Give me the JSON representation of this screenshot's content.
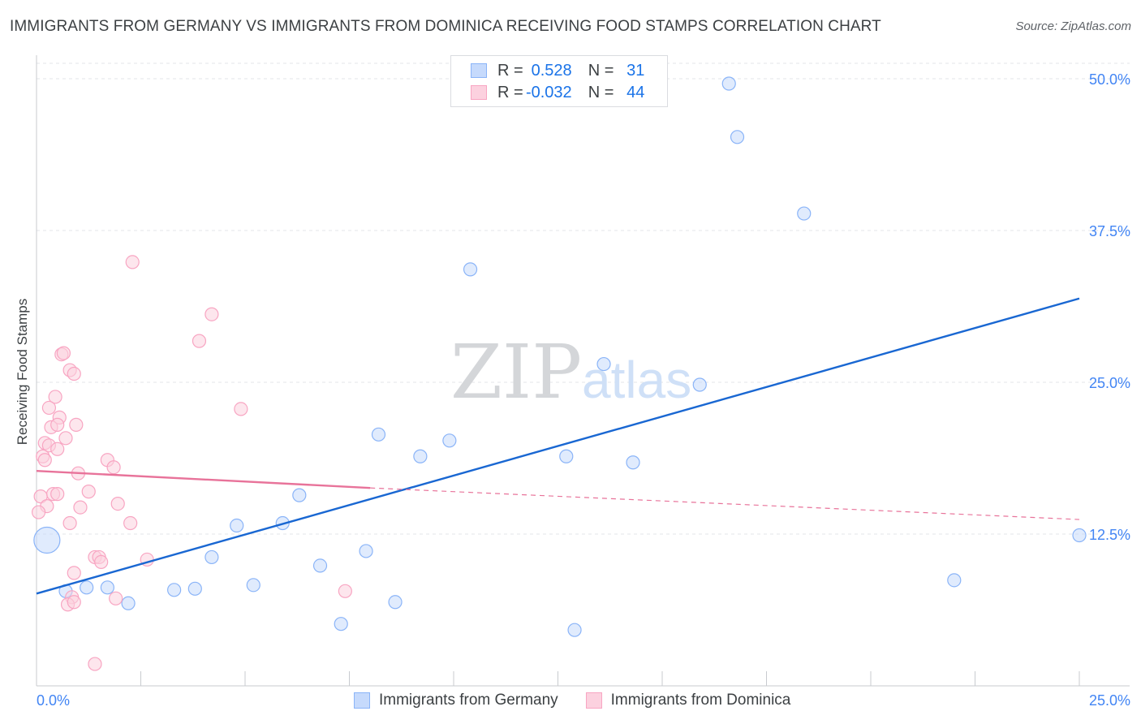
{
  "header": {
    "title": "IMMIGRANTS FROM GERMANY VS IMMIGRANTS FROM DOMINICA RECEIVING FOOD STAMPS CORRELATION CHART",
    "source": "Source: ZipAtlas.com"
  },
  "legend": {
    "rows": [
      {
        "r_label": "R = ",
        "r_value": "0.528",
        "n_label": "N = ",
        "n_value": "31"
      },
      {
        "r_label": "R = ",
        "r_value": "-0.032",
        "n_label": "N = ",
        "n_value": "44"
      }
    ]
  },
  "chart_data": {
    "type": "scatter",
    "title": "IMMIGRANTS FROM GERMANY VS IMMIGRANTS FROM DOMINICA RECEIVING FOOD STAMPS CORRELATION CHART",
    "xlabel": "",
    "ylabel": "Receiving Food Stamps",
    "xlim": [
      0,
      25
    ],
    "ylim": [
      0,
      50
    ],
    "x_tick_labels": [
      "0.0%",
      "25.0%"
    ],
    "y_ticks": [
      12.5,
      25.0,
      37.5,
      50.0
    ],
    "y_tick_labels": [
      "12.5%",
      "25.0%",
      "37.5%",
      "50.0%"
    ],
    "grid": true,
    "legend_position": "top-center",
    "bottom_legend_position": "bottom-center",
    "watermark": {
      "part1": "ZIP",
      "part2": "atlas"
    },
    "series": [
      {
        "name": "Immigrants from Germany",
        "color": "#8ab4f8",
        "line_color": "#1967d2",
        "points": [
          [
            0.25,
            12.0,
            2.0
          ],
          [
            0.7,
            7.8,
            1
          ],
          [
            1.2,
            8.1,
            1
          ],
          [
            1.7,
            8.1,
            1
          ],
          [
            2.2,
            6.8,
            1
          ],
          [
            3.3,
            7.9,
            1
          ],
          [
            3.8,
            8.0,
            1
          ],
          [
            4.2,
            10.6,
            1
          ],
          [
            4.8,
            13.2,
            1
          ],
          [
            5.2,
            8.3,
            1
          ],
          [
            5.9,
            13.4,
            1
          ],
          [
            6.3,
            15.7,
            1
          ],
          [
            6.8,
            9.9,
            1
          ],
          [
            7.3,
            5.1,
            1
          ],
          [
            7.9,
            11.1,
            1
          ],
          [
            8.2,
            20.7,
            1
          ],
          [
            8.6,
            6.9,
            1
          ],
          [
            9.2,
            18.9,
            1
          ],
          [
            9.9,
            20.2,
            1
          ],
          [
            10.4,
            34.3,
            1
          ],
          [
            12.7,
            18.9,
            1
          ],
          [
            12.9,
            4.6,
            1
          ],
          [
            13.6,
            26.5,
            1
          ],
          [
            14.3,
            18.4,
            1
          ],
          [
            15.9,
            24.8,
            1
          ],
          [
            16.6,
            49.6,
            1
          ],
          [
            16.8,
            45.2,
            1
          ],
          [
            18.4,
            38.9,
            1
          ],
          [
            22.0,
            8.7,
            1
          ],
          [
            25.0,
            12.4,
            1
          ]
        ],
        "trend": {
          "x": [
            0,
            25
          ],
          "y": [
            7.6,
            31.9
          ]
        }
      },
      {
        "name": "Immigrants from Dominica",
        "color": "#f8a5c2",
        "line_color": "#e8739a",
        "points": [
          [
            2.3,
            34.9,
            1
          ],
          [
            0.6,
            27.3,
            1
          ],
          [
            0.65,
            27.4,
            1
          ],
          [
            0.8,
            26.0,
            1
          ],
          [
            0.9,
            25.7,
            1
          ],
          [
            0.45,
            23.8,
            1
          ],
          [
            0.3,
            22.9,
            1
          ],
          [
            0.55,
            22.1,
            1
          ],
          [
            0.35,
            21.3,
            1
          ],
          [
            0.5,
            21.5,
            1
          ],
          [
            0.95,
            21.5,
            1
          ],
          [
            0.7,
            20.4,
            1
          ],
          [
            0.2,
            20.0,
            1
          ],
          [
            0.3,
            19.8,
            1
          ],
          [
            0.5,
            19.5,
            1
          ],
          [
            0.15,
            18.9,
            1
          ],
          [
            0.2,
            18.6,
            1
          ],
          [
            1.7,
            18.6,
            1
          ],
          [
            1.85,
            18.0,
            1
          ],
          [
            1.0,
            17.5,
            1
          ],
          [
            0.4,
            15.8,
            1
          ],
          [
            0.5,
            15.8,
            1
          ],
          [
            0.1,
            15.6,
            1
          ],
          [
            1.25,
            16.0,
            1
          ],
          [
            0.25,
            14.8,
            1
          ],
          [
            1.05,
            14.7,
            1
          ],
          [
            1.95,
            15.0,
            1
          ],
          [
            0.05,
            14.3,
            1
          ],
          [
            0.8,
            13.4,
            1
          ],
          [
            2.25,
            13.4,
            1
          ],
          [
            1.4,
            10.6,
            1
          ],
          [
            1.5,
            10.6,
            1
          ],
          [
            1.55,
            10.2,
            1
          ],
          [
            2.65,
            10.4,
            1
          ],
          [
            0.9,
            9.3,
            1
          ],
          [
            0.85,
            7.3,
            1
          ],
          [
            0.75,
            6.7,
            1
          ],
          [
            0.9,
            6.9,
            1
          ],
          [
            1.9,
            7.2,
            1
          ],
          [
            4.2,
            30.6,
            1
          ],
          [
            3.9,
            28.4,
            1
          ],
          [
            4.9,
            22.8,
            1
          ],
          [
            7.4,
            7.8,
            1
          ],
          [
            1.4,
            1.8,
            1
          ]
        ],
        "trend": {
          "x": [
            0,
            8.0
          ],
          "y": [
            17.7,
            16.3
          ]
        },
        "trend_dashed": {
          "x": [
            8.0,
            25
          ],
          "y": [
            16.3,
            13.7
          ]
        }
      }
    ]
  },
  "bottom_legend": {
    "items": [
      {
        "label": "Immigrants from Germany"
      },
      {
        "label": "Immigrants from Dominica"
      }
    ]
  }
}
